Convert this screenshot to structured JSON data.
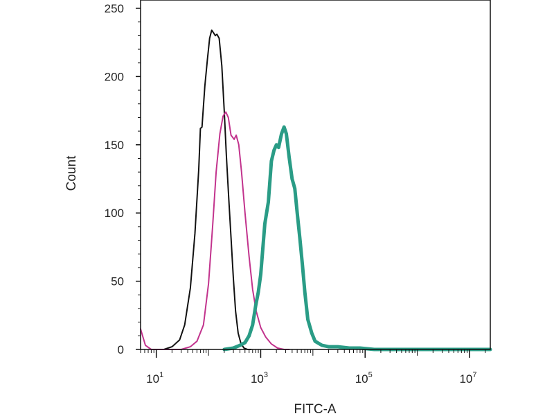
{
  "chart_data": {
    "type": "line",
    "xlabel": "FITC-A",
    "ylabel": "Count",
    "xscale": "log",
    "xlim": [
      5,
      25000000
    ],
    "ylim": [
      0,
      250
    ],
    "grid": false,
    "x_ticks": [
      {
        "base": "10",
        "exp": "1",
        "value": 10
      },
      {
        "base": "10",
        "exp": "3",
        "value": 1000
      },
      {
        "base": "10",
        "exp": "5",
        "value": 100000
      },
      {
        "base": "10",
        "exp": "7",
        "value": 10000000
      }
    ],
    "y_ticks": [
      "0",
      "50",
      "100",
      "150",
      "200",
      "250"
    ],
    "series": [
      {
        "color": "#111111",
        "width": 2,
        "points": [
          [
            14,
            0
          ],
          [
            20,
            2
          ],
          [
            28,
            7
          ],
          [
            35,
            18
          ],
          [
            45,
            45
          ],
          [
            55,
            85
          ],
          [
            65,
            132
          ],
          [
            70,
            162
          ],
          [
            75,
            163
          ],
          [
            85,
            193
          ],
          [
            95,
            212
          ],
          [
            105,
            228
          ],
          [
            115,
            234
          ],
          [
            125,
            232
          ],
          [
            135,
            230
          ],
          [
            145,
            231
          ],
          [
            160,
            228
          ],
          [
            180,
            208
          ],
          [
            200,
            175
          ],
          [
            220,
            142
          ],
          [
            245,
            110
          ],
          [
            270,
            82
          ],
          [
            300,
            52
          ],
          [
            330,
            28
          ],
          [
            370,
            12
          ],
          [
            420,
            4
          ],
          [
            480,
            1
          ],
          [
            560,
            0
          ],
          [
            650,
            0
          ]
        ]
      },
      {
        "color": "#c2338d",
        "width": 2,
        "points": [
          [
            5,
            15
          ],
          [
            6.2,
            3
          ],
          [
            8,
            0
          ],
          [
            30,
            0
          ],
          [
            45,
            2
          ],
          [
            60,
            6
          ],
          [
            80,
            18
          ],
          [
            100,
            48
          ],
          [
            120,
            90
          ],
          [
            140,
            130
          ],
          [
            165,
            158
          ],
          [
            190,
            171
          ],
          [
            215,
            174
          ],
          [
            240,
            170
          ],
          [
            270,
            157
          ],
          [
            310,
            154
          ],
          [
            340,
            157
          ],
          [
            380,
            150
          ],
          [
            430,
            130
          ],
          [
            500,
            100
          ],
          [
            600,
            68
          ],
          [
            700,
            44
          ],
          [
            820,
            28
          ],
          [
            1000,
            16
          ],
          [
            1250,
            9
          ],
          [
            1600,
            4
          ],
          [
            2100,
            1
          ],
          [
            2800,
            0
          ],
          [
            3500,
            0
          ]
        ]
      },
      {
        "color": "#2a9c86",
        "width": 5,
        "points": [
          [
            200,
            0
          ],
          [
            300,
            1
          ],
          [
            400,
            3
          ],
          [
            500,
            5
          ],
          [
            600,
            10
          ],
          [
            700,
            18
          ],
          [
            800,
            32
          ],
          [
            900,
            42
          ],
          [
            1000,
            55
          ],
          [
            1200,
            92
          ],
          [
            1400,
            108
          ],
          [
            1600,
            138
          ],
          [
            1800,
            146
          ],
          [
            2000,
            150
          ],
          [
            2200,
            148
          ],
          [
            2500,
            158
          ],
          [
            2800,
            163
          ],
          [
            3100,
            158
          ],
          [
            3500,
            141
          ],
          [
            4000,
            125
          ],
          [
            4500,
            118
          ],
          [
            5000,
            100
          ],
          [
            5600,
            82
          ],
          [
            6300,
            62
          ],
          [
            7000,
            42
          ],
          [
            8000,
            22
          ],
          [
            9500,
            12
          ],
          [
            11000,
            6
          ],
          [
            15000,
            3
          ],
          [
            20000,
            2
          ],
          [
            30000,
            2
          ],
          [
            50000,
            1
          ],
          [
            80000,
            1
          ],
          [
            150000,
            0
          ],
          [
            25000000,
            0
          ]
        ]
      }
    ]
  }
}
